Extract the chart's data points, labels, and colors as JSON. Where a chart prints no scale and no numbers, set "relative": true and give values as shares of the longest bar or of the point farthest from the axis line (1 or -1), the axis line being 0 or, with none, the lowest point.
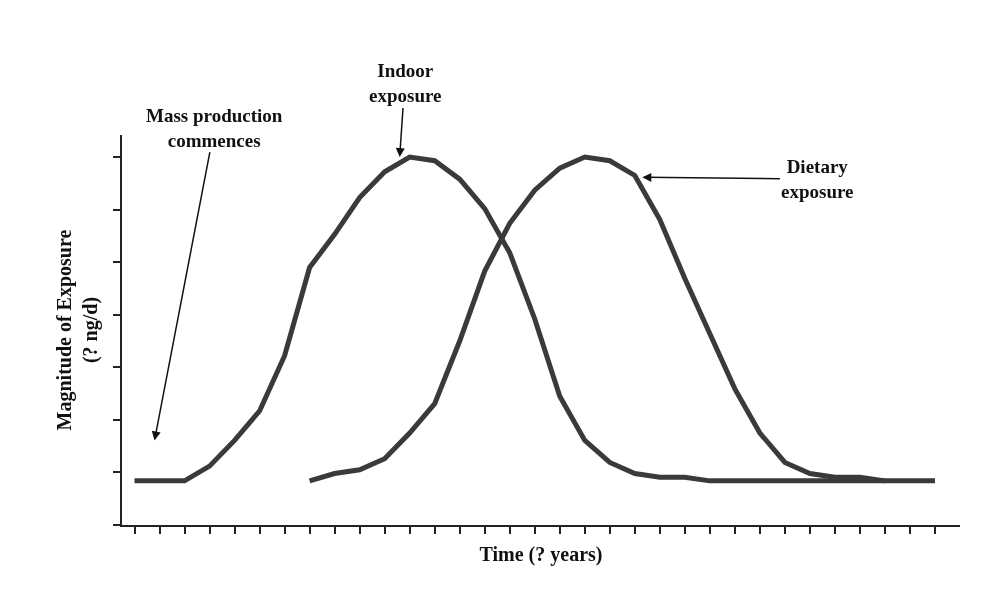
{
  "chart_data": {
    "type": "line",
    "relative": true,
    "xlabel": "Time (? years)",
    "ylabel": "Magnitude of Exposure\n(? ng/d)",
    "categories": [
      null,
      null,
      null,
      null,
      null,
      null,
      null,
      null,
      null,
      null,
      null,
      null,
      null,
      null,
      null,
      null,
      null,
      null,
      null,
      null,
      null,
      null,
      null,
      null,
      null,
      null,
      null,
      null,
      null,
      null,
      null,
      null,
      null
    ],
    "series": [
      {
        "color": "#3a3a3a",
        "values": [
          0.12,
          0.12,
          0.12,
          0.16,
          0.23,
          0.31,
          0.46,
          0.7,
          0.79,
          0.89,
          0.96,
          1,
          0.99,
          0.94,
          0.86,
          0.74,
          0.56,
          0.35,
          0.23,
          0.17,
          0.14,
          0.13,
          0.13,
          0.12,
          0.12,
          0.12,
          0.12,
          0.12,
          0.12,
          0.12,
          0.12,
          null,
          null
        ]
      },
      {
        "color": "#3a3a3a",
        "values": [
          null,
          null,
          null,
          null,
          null,
          null,
          null,
          0.12,
          0.14,
          0.15,
          0.18,
          0.25,
          0.33,
          0.5,
          0.69,
          0.82,
          0.91,
          0.97,
          1,
          0.99,
          0.95,
          0.83,
          0.67,
          0.52,
          0.37,
          0.25,
          0.17,
          0.14,
          0.13,
          0.13,
          0.12,
          0.12,
          0.12
        ]
      }
    ],
    "annotations": [
      "Mass production\ncommences",
      "Indoor\nexposure",
      "Dietary\nexposure"
    ],
    "marker": "none",
    "line_style": "solid"
  }
}
